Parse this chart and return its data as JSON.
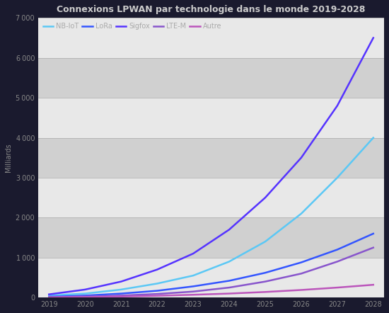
{
  "title": "Connexions LPWAN par technologie dans le monde 2019-2028",
  "background_color": "#1a1a2e",
  "plot_bg_color": "#d8d8d8",
  "grid_color": "#ffffff",
  "band_color": "#c8c8c8",
  "text_color": "#888888",
  "years": [
    2019,
    2020,
    2021,
    2022,
    2023,
    2024,
    2025,
    2026,
    2027,
    2028
  ],
  "series": [
    {
      "name": "NB-IoT",
      "color": "#5bc8f5",
      "data": [
        50,
        100,
        200,
        350,
        550,
        900,
        1400,
        2100,
        3000,
        4000
      ]
    },
    {
      "name": "LoRa",
      "color": "#3355ff",
      "data": [
        20,
        50,
        100,
        170,
        280,
        420,
        620,
        880,
        1200,
        1600
      ]
    },
    {
      "name": "Sigfox",
      "color": "#5533ff",
      "data": [
        80,
        200,
        400,
        700,
        1100,
        1700,
        2500,
        3500,
        4800,
        6500
      ]
    },
    {
      "name": "LTE-M",
      "color": "#8855cc",
      "data": [
        10,
        25,
        50,
        90,
        150,
        250,
        400,
        600,
        900,
        1250
      ]
    },
    {
      "name": "Autre",
      "color": "#bb55bb",
      "data": [
        5,
        12,
        25,
        45,
        70,
        100,
        140,
        190,
        250,
        320
      ]
    }
  ],
  "ylim": [
    0,
    7000
  ],
  "ytick_values": [
    0,
    1000,
    2000,
    3000,
    4000,
    5000,
    6000,
    7000
  ],
  "ylabel": "Milliards",
  "title_fontsize": 9,
  "tick_fontsize": 7,
  "legend_fontsize": 7
}
